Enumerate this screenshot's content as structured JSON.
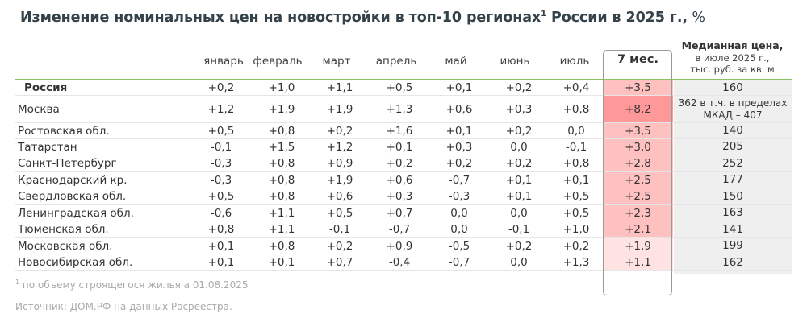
{
  "title": {
    "text": "Изменение номинальных цен на новостройки в топ-10 регионах",
    "sup": "1",
    "text2": " России в 2025 г.,",
    "unit": " %"
  },
  "columns": [
    "январь",
    "февраль",
    "март",
    "апрель",
    "май",
    "июнь",
    "июль"
  ],
  "total_col": "7 мес.",
  "median_col": {
    "line1": "Медианная цена,",
    "line2": "в июле 2025 г.,",
    "line3": "тыс. руб. за кв. м"
  },
  "colors": {
    "rule": "#8dc063",
    "heat_strong": "#ff9999",
    "heat_mid": "#ffc0c0",
    "heat_light": "#ffe3e3",
    "median_bg": "#efefef"
  },
  "rows": [
    {
      "name": "Россия",
      "values": [
        "+0,2",
        "+1,0",
        "+1,1",
        "+0,5",
        "+0,1",
        "+0,2",
        "+0,4"
      ],
      "total": "+3,5",
      "median": "160"
    },
    {
      "name": "Москва",
      "values": [
        "+1,2",
        "+1,9",
        "+1,9",
        "+1,3",
        "+0,6",
        "+0,3",
        "+0,8"
      ],
      "total": "+8,2",
      "median": "362 в т.ч. в пределах МКАД – 407"
    },
    {
      "name": "Ростовская обл.",
      "values": [
        "+0,5",
        "+0,8",
        "+0,2",
        "+1,6",
        "+0,1",
        "+0,2",
        "0,0"
      ],
      "total": "+3,5",
      "median": "140"
    },
    {
      "name": "Татарстан",
      "values": [
        "-0,1",
        "+1,5",
        "+1,2",
        "+0,1",
        "+0,3",
        "0,0",
        "-0,1"
      ],
      "total": "+3,0",
      "median": "205"
    },
    {
      "name": "Санкт-Петербург",
      "values": [
        "-0,3",
        "+0,8",
        "+0,9",
        "+0,2",
        "+0,2",
        "+0,2",
        "+0,8"
      ],
      "total": "+2,8",
      "median": "252"
    },
    {
      "name": "Краснодарский кр.",
      "values": [
        "-0,3",
        "+0,8",
        "+1,9",
        "+0,6",
        "-0,7",
        "+0,1",
        "+0,1"
      ],
      "total": "+2,5",
      "median": "177"
    },
    {
      "name": "Свердловская обл.",
      "values": [
        "+0,5",
        "+0,8",
        "+0,6",
        "+0,3",
        "-0,3",
        "+0,1",
        "+0,5"
      ],
      "total": "+2,5",
      "median": "150"
    },
    {
      "name": "Ленинградская обл.",
      "values": [
        "-0,6",
        "+1,1",
        "+0,5",
        "+0,7",
        "0,0",
        "0,0",
        "+0,5"
      ],
      "total": "+2,3",
      "median": "163"
    },
    {
      "name": "Тюменская обл.",
      "values": [
        "+0,8",
        "+1,1",
        "-0,1",
        "-0,7",
        "0,0",
        "-0,1",
        "+1,0"
      ],
      "total": "+2,1",
      "median": "141"
    },
    {
      "name": "Московская обл.",
      "values": [
        "+0,1",
        "+0,8",
        "+0,2",
        "+0,9",
        "-0,5",
        "+0,2",
        "+0,2"
      ],
      "total": "+1,9",
      "median": "199"
    },
    {
      "name": "Новосибирская обл.",
      "values": [
        "+0,1",
        "+0,1",
        "+0,7",
        "-0,4",
        "-0,7",
        "0,0",
        "+1,3"
      ],
      "total": "+1,1",
      "median": "162"
    }
  ],
  "footnote": {
    "sup": "1",
    "text": " по объему строящегося жилья а 01.08.2025"
  },
  "source": "Источник: ДОМ.РФ на данных Росреестра.",
  "chart_data": {
    "type": "table",
    "title": "Изменение номинальных цен на новостройки в топ-10 регионах России в 2025 г., %",
    "columns": [
      "январь",
      "февраль",
      "март",
      "апрель",
      "май",
      "июнь",
      "июль",
      "7 мес.",
      "Медианная цена, в июле 2025 г., тыс. руб. за кв. м"
    ],
    "rows": [
      [
        "Россия",
        0.2,
        1.0,
        1.1,
        0.5,
        0.1,
        0.2,
        0.4,
        3.5,
        "160"
      ],
      [
        "Москва",
        1.2,
        1.9,
        1.9,
        1.3,
        0.6,
        0.3,
        0.8,
        8.2,
        "362 (МКАД – 407)"
      ],
      [
        "Ростовская обл.",
        0.5,
        0.8,
        0.2,
        1.6,
        0.1,
        0.2,
        0.0,
        3.5,
        "140"
      ],
      [
        "Татарстан",
        -0.1,
        1.5,
        1.2,
        0.1,
        0.3,
        0.0,
        -0.1,
        3.0,
        "205"
      ],
      [
        "Санкт-Петербург",
        -0.3,
        0.8,
        0.9,
        0.2,
        0.2,
        0.2,
        0.8,
        2.8,
        "252"
      ],
      [
        "Краснодарский кр.",
        -0.3,
        0.8,
        1.9,
        0.6,
        -0.7,
        0.1,
        0.1,
        2.5,
        "177"
      ],
      [
        "Свердловская обл.",
        0.5,
        0.8,
        0.6,
        0.3,
        -0.3,
        0.1,
        0.5,
        2.5,
        "150"
      ],
      [
        "Ленинградская обл.",
        -0.6,
        1.1,
        0.5,
        0.7,
        0.0,
        0.0,
        0.5,
        2.3,
        "163"
      ],
      [
        "Тюменская обл.",
        0.8,
        1.1,
        -0.1,
        -0.7,
        0.0,
        -0.1,
        1.0,
        2.1,
        "141"
      ],
      [
        "Московская обл.",
        0.1,
        0.8,
        0.2,
        0.9,
        -0.5,
        0.2,
        0.2,
        1.9,
        "199"
      ],
      [
        "Новосибирская обл.",
        0.1,
        0.1,
        0.7,
        -0.4,
        -0.7,
        0.0,
        1.3,
        1.1,
        "162"
      ]
    ]
  }
}
